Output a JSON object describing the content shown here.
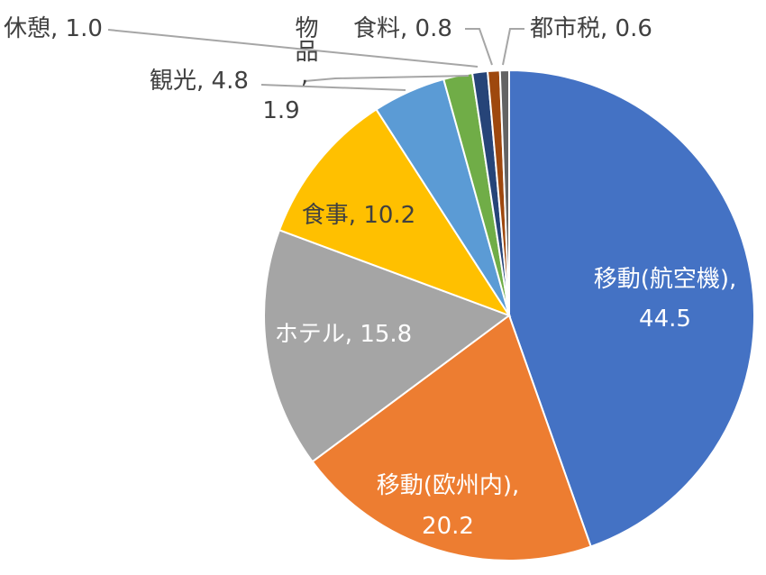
{
  "chart_data": {
    "type": "pie",
    "title": "",
    "slices": [
      {
        "label": "移動(航空機), ",
        "value": "44.5",
        "num": 44.5,
        "color": "#4472c4"
      },
      {
        "label": "移動(欧州内), ",
        "value": "20.2",
        "num": 20.2,
        "color": "#ed7d31"
      },
      {
        "label": "ホテル, ",
        "value": "15.8",
        "num": 15.8,
        "color": "#a5a5a5"
      },
      {
        "label": "食事, ",
        "value": "10.2",
        "num": 10.2,
        "color": "#ffc000"
      },
      {
        "label": "観光, ",
        "value": "4.8",
        "num": 4.8,
        "color": "#5b9bd5"
      },
      {
        "label": "物品, ",
        "value": "1.9",
        "num": 1.9,
        "color": "#70ad47"
      },
      {
        "label": "休憩, ",
        "value": "1.0",
        "num": 1.0,
        "color": "#264478"
      },
      {
        "label": "食料, ",
        "value": "0.8",
        "num": 0.8,
        "color": "#9e480e"
      },
      {
        "label": "都市税, ",
        "value": "0.6",
        "num": 0.6,
        "color": "#636363"
      }
    ]
  }
}
